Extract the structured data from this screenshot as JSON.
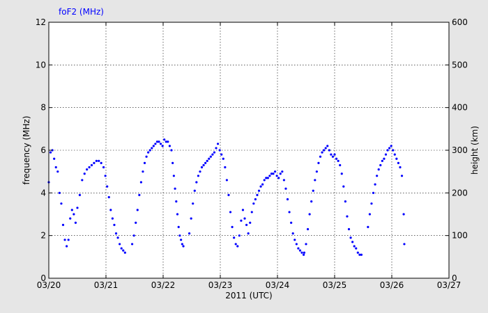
{
  "chart_data": {
    "type": "scatter",
    "title": "",
    "series_label": "foF2 (MHz)",
    "series_color": "#0000ff",
    "xlabel": "2011 (UTC)",
    "ylabel": "frequency (MHz)",
    "y2label": "height (km)",
    "x_ticks": [
      "03/20",
      "03/21",
      "03/22",
      "03/23",
      "03/24",
      "03/25",
      "03/26",
      "03/27"
    ],
    "xlim": [
      "2011-03-20 00:00",
      "2011-03-27 00:00"
    ],
    "ylim": [
      0,
      12
    ],
    "y2lim": [
      0,
      600
    ],
    "y_ticks": [
      0,
      2,
      4,
      6,
      8,
      10,
      12
    ],
    "y2_ticks": [
      0,
      100,
      200,
      300,
      400,
      500,
      600
    ],
    "grid": true,
    "series": [
      {
        "name": "foF2 (MHz)",
        "points": [
          [
            "03/20 00:00",
            4.5
          ],
          [
            "03/20 00:45",
            5.9
          ],
          [
            "03/20 01:30",
            6.0
          ],
          [
            "03/20 02:15",
            5.6
          ],
          [
            "03/20 03:00",
            5.2
          ],
          [
            "03/20 03:45",
            5.0
          ],
          [
            "03/20 04:30",
            4.0
          ],
          [
            "03/20 05:15",
            3.5
          ],
          [
            "03/20 06:00",
            2.5
          ],
          [
            "03/20 06:45",
            1.8
          ],
          [
            "03/20 07:30",
            1.5
          ],
          [
            "03/20 08:15",
            1.8
          ],
          [
            "03/20 09:00",
            2.8
          ],
          [
            "03/20 09:45",
            3.2
          ],
          [
            "03/20 10:30",
            3.0
          ],
          [
            "03/20 11:15",
            2.6
          ],
          [
            "03/20 12:00",
            3.3
          ],
          [
            "03/20 13:00",
            3.9
          ],
          [
            "03/20 14:00",
            4.6
          ],
          [
            "03/20 15:00",
            4.9
          ],
          [
            "03/20 16:00",
            5.1
          ],
          [
            "03/20 17:00",
            5.2
          ],
          [
            "03/20 18:00",
            5.3
          ],
          [
            "03/20 19:00",
            5.4
          ],
          [
            "03/20 20:00",
            5.5
          ],
          [
            "03/20 21:00",
            5.5
          ],
          [
            "03/20 22:00",
            5.4
          ],
          [
            "03/20 23:00",
            5.2
          ],
          [
            "03/20 23:45",
            4.8
          ],
          [
            "03/21 00:30",
            4.3
          ],
          [
            "03/21 01:15",
            3.8
          ],
          [
            "03/21 02:00",
            3.2
          ],
          [
            "03/21 02:45",
            2.8
          ],
          [
            "03/21 03:30",
            2.5
          ],
          [
            "03/21 04:15",
            2.1
          ],
          [
            "03/21 05:00",
            1.9
          ],
          [
            "03/21 05:45",
            1.6
          ],
          [
            "03/21 06:30",
            1.4
          ],
          [
            "03/21 07:15",
            1.3
          ],
          [
            "03/21 08:00",
            1.2
          ],
          [
            "03/21 11:00",
            1.6
          ],
          [
            "03/21 11:45",
            2.0
          ],
          [
            "03/21 12:30",
            2.6
          ],
          [
            "03/21 13:15",
            3.2
          ],
          [
            "03/21 14:00",
            3.9
          ],
          [
            "03/21 14:45",
            4.5
          ],
          [
            "03/21 15:30",
            5.0
          ],
          [
            "03/21 16:15",
            5.4
          ],
          [
            "03/21 17:00",
            5.7
          ],
          [
            "03/21 17:45",
            5.9
          ],
          [
            "03/21 18:30",
            6.0
          ],
          [
            "03/21 19:15",
            6.1
          ],
          [
            "03/21 20:00",
            6.2
          ],
          [
            "03/21 20:45",
            6.3
          ],
          [
            "03/21 21:30",
            6.4
          ],
          [
            "03/21 22:15",
            6.4
          ],
          [
            "03/21 23:00",
            6.3
          ],
          [
            "03/21 23:45",
            6.2
          ],
          [
            "03/22 00:30",
            6.5
          ],
          [
            "03/22 01:15",
            6.4
          ],
          [
            "03/22 02:00",
            6.4
          ],
          [
            "03/22 02:45",
            6.2
          ],
          [
            "03/22 03:30",
            6.0
          ],
          [
            "03/22 04:00",
            5.4
          ],
          [
            "03/22 04:30",
            4.8
          ],
          [
            "03/22 05:00",
            4.2
          ],
          [
            "03/22 05:30",
            3.6
          ],
          [
            "03/22 06:00",
            3.0
          ],
          [
            "03/22 06:30",
            2.4
          ],
          [
            "03/22 07:00",
            2.0
          ],
          [
            "03/22 07:30",
            1.8
          ],
          [
            "03/22 08:00",
            1.6
          ],
          [
            "03/22 08:30",
            1.5
          ],
          [
            "03/22 11:00",
            2.1
          ],
          [
            "03/22 11:45",
            2.8
          ],
          [
            "03/22 12:30",
            3.5
          ],
          [
            "03/22 13:15",
            4.1
          ],
          [
            "03/22 14:00",
            4.5
          ],
          [
            "03/22 14:45",
            4.8
          ],
          [
            "03/22 15:30",
            5.0
          ],
          [
            "03/22 16:15",
            5.2
          ],
          [
            "03/22 17:00",
            5.3
          ],
          [
            "03/22 17:45",
            5.4
          ],
          [
            "03/22 18:30",
            5.5
          ],
          [
            "03/22 19:15",
            5.6
          ],
          [
            "03/22 20:00",
            5.7
          ],
          [
            "03/22 20:45",
            5.8
          ],
          [
            "03/22 21:30",
            5.9
          ],
          [
            "03/22 22:15",
            6.1
          ],
          [
            "03/22 23:00",
            6.3
          ],
          [
            "03/22 23:45",
            6.0
          ],
          [
            "03/23 00:30",
            5.8
          ],
          [
            "03/23 01:15",
            5.6
          ],
          [
            "03/23 02:00",
            5.2
          ],
          [
            "03/23 02:45",
            4.6
          ],
          [
            "03/23 03:30",
            3.9
          ],
          [
            "03/23 04:15",
            3.1
          ],
          [
            "03/23 05:00",
            2.4
          ],
          [
            "03/23 05:45",
            1.9
          ],
          [
            "03/23 06:30",
            1.6
          ],
          [
            "03/23 07:15",
            1.5
          ],
          [
            "03/23 08:00",
            2.0
          ],
          [
            "03/23 08:45",
            2.7
          ],
          [
            "03/23 09:30",
            3.2
          ],
          [
            "03/23 10:15",
            2.8
          ],
          [
            "03/23 11:00",
            2.5
          ],
          [
            "03/23 11:45",
            2.1
          ],
          [
            "03/23 12:30",
            2.6
          ],
          [
            "03/23 13:15",
            3.1
          ],
          [
            "03/23 14:00",
            3.5
          ],
          [
            "03/23 14:45",
            3.7
          ],
          [
            "03/23 15:30",
            3.9
          ],
          [
            "03/23 16:15",
            4.1
          ],
          [
            "03/23 17:00",
            4.3
          ],
          [
            "03/23 17:45",
            4.4
          ],
          [
            "03/23 18:30",
            4.6
          ],
          [
            "03/23 19:15",
            4.7
          ],
          [
            "03/23 20:00",
            4.7
          ],
          [
            "03/23 20:45",
            4.8
          ],
          [
            "03/23 21:30",
            4.9
          ],
          [
            "03/23 22:15",
            4.9
          ],
          [
            "03/23 23:00",
            5.0
          ],
          [
            "03/23 23:45",
            4.8
          ],
          [
            "03/24 00:30",
            4.7
          ],
          [
            "03/24 01:15",
            4.9
          ],
          [
            "03/24 02:00",
            5.0
          ],
          [
            "03/24 02:45",
            4.6
          ],
          [
            "03/24 03:30",
            4.2
          ],
          [
            "03/24 04:15",
            3.7
          ],
          [
            "03/24 05:00",
            3.1
          ],
          [
            "03/24 05:45",
            2.6
          ],
          [
            "03/24 06:30",
            2.1
          ],
          [
            "03/24 07:15",
            1.8
          ],
          [
            "03/24 08:00",
            1.6
          ],
          [
            "03/24 08:45",
            1.4
          ],
          [
            "03/24 09:30",
            1.3
          ],
          [
            "03/24 10:15",
            1.2
          ],
          [
            "03/24 11:00",
            1.1
          ],
          [
            "03/24 11:15",
            1.2
          ],
          [
            "03/24 12:00",
            1.6
          ],
          [
            "03/24 12:45",
            2.3
          ],
          [
            "03/24 13:30",
            3.0
          ],
          [
            "03/24 14:15",
            3.6
          ],
          [
            "03/24 15:00",
            4.1
          ],
          [
            "03/24 15:45",
            4.6
          ],
          [
            "03/24 16:30",
            5.0
          ],
          [
            "03/24 17:15",
            5.4
          ],
          [
            "03/24 18:00",
            5.7
          ],
          [
            "03/24 18:45",
            5.9
          ],
          [
            "03/24 19:30",
            6.0
          ],
          [
            "03/24 20:15",
            6.1
          ],
          [
            "03/24 21:00",
            6.2
          ],
          [
            "03/24 21:45",
            6.0
          ],
          [
            "03/24 22:30",
            5.8
          ],
          [
            "03/24 23:15",
            5.7
          ],
          [
            "03/25 00:00",
            5.8
          ],
          [
            "03/25 00:45",
            5.6
          ],
          [
            "03/25 01:30",
            5.5
          ],
          [
            "03/25 02:15",
            5.3
          ],
          [
            "03/25 03:00",
            4.9
          ],
          [
            "03/25 03:45",
            4.3
          ],
          [
            "03/25 04:30",
            3.6
          ],
          [
            "03/25 05:15",
            2.9
          ],
          [
            "03/25 06:00",
            2.3
          ],
          [
            "03/25 06:45",
            1.9
          ],
          [
            "03/25 07:30",
            1.7
          ],
          [
            "03/25 08:15",
            1.5
          ],
          [
            "03/25 09:00",
            1.4
          ],
          [
            "03/25 09:45",
            1.2
          ],
          [
            "03/25 10:30",
            1.1
          ],
          [
            "03/25 11:15",
            1.1
          ],
          [
            "03/25 14:00",
            2.4
          ],
          [
            "03/25 14:45",
            3.0
          ],
          [
            "03/25 15:30",
            3.5
          ],
          [
            "03/25 16:15",
            4.0
          ],
          [
            "03/25 17:00",
            4.4
          ],
          [
            "03/25 17:45",
            4.8
          ],
          [
            "03/25 18:30",
            5.1
          ],
          [
            "03/25 19:15",
            5.3
          ],
          [
            "03/25 20:00",
            5.5
          ],
          [
            "03/25 20:45",
            5.6
          ],
          [
            "03/25 21:30",
            5.8
          ],
          [
            "03/25 22:15",
            6.0
          ],
          [
            "03/25 23:00",
            6.1
          ],
          [
            "03/25 23:45",
            6.2
          ],
          [
            "03/26 00:30",
            6.0
          ],
          [
            "03/26 01:15",
            5.8
          ],
          [
            "03/26 02:00",
            5.6
          ],
          [
            "03/26 02:45",
            5.4
          ],
          [
            "03/26 03:30",
            5.2
          ],
          [
            "03/26 04:15",
            4.8
          ],
          [
            "03/26 05:00",
            3.0
          ],
          [
            "03/26 05:15",
            1.6
          ]
        ]
      }
    ]
  }
}
